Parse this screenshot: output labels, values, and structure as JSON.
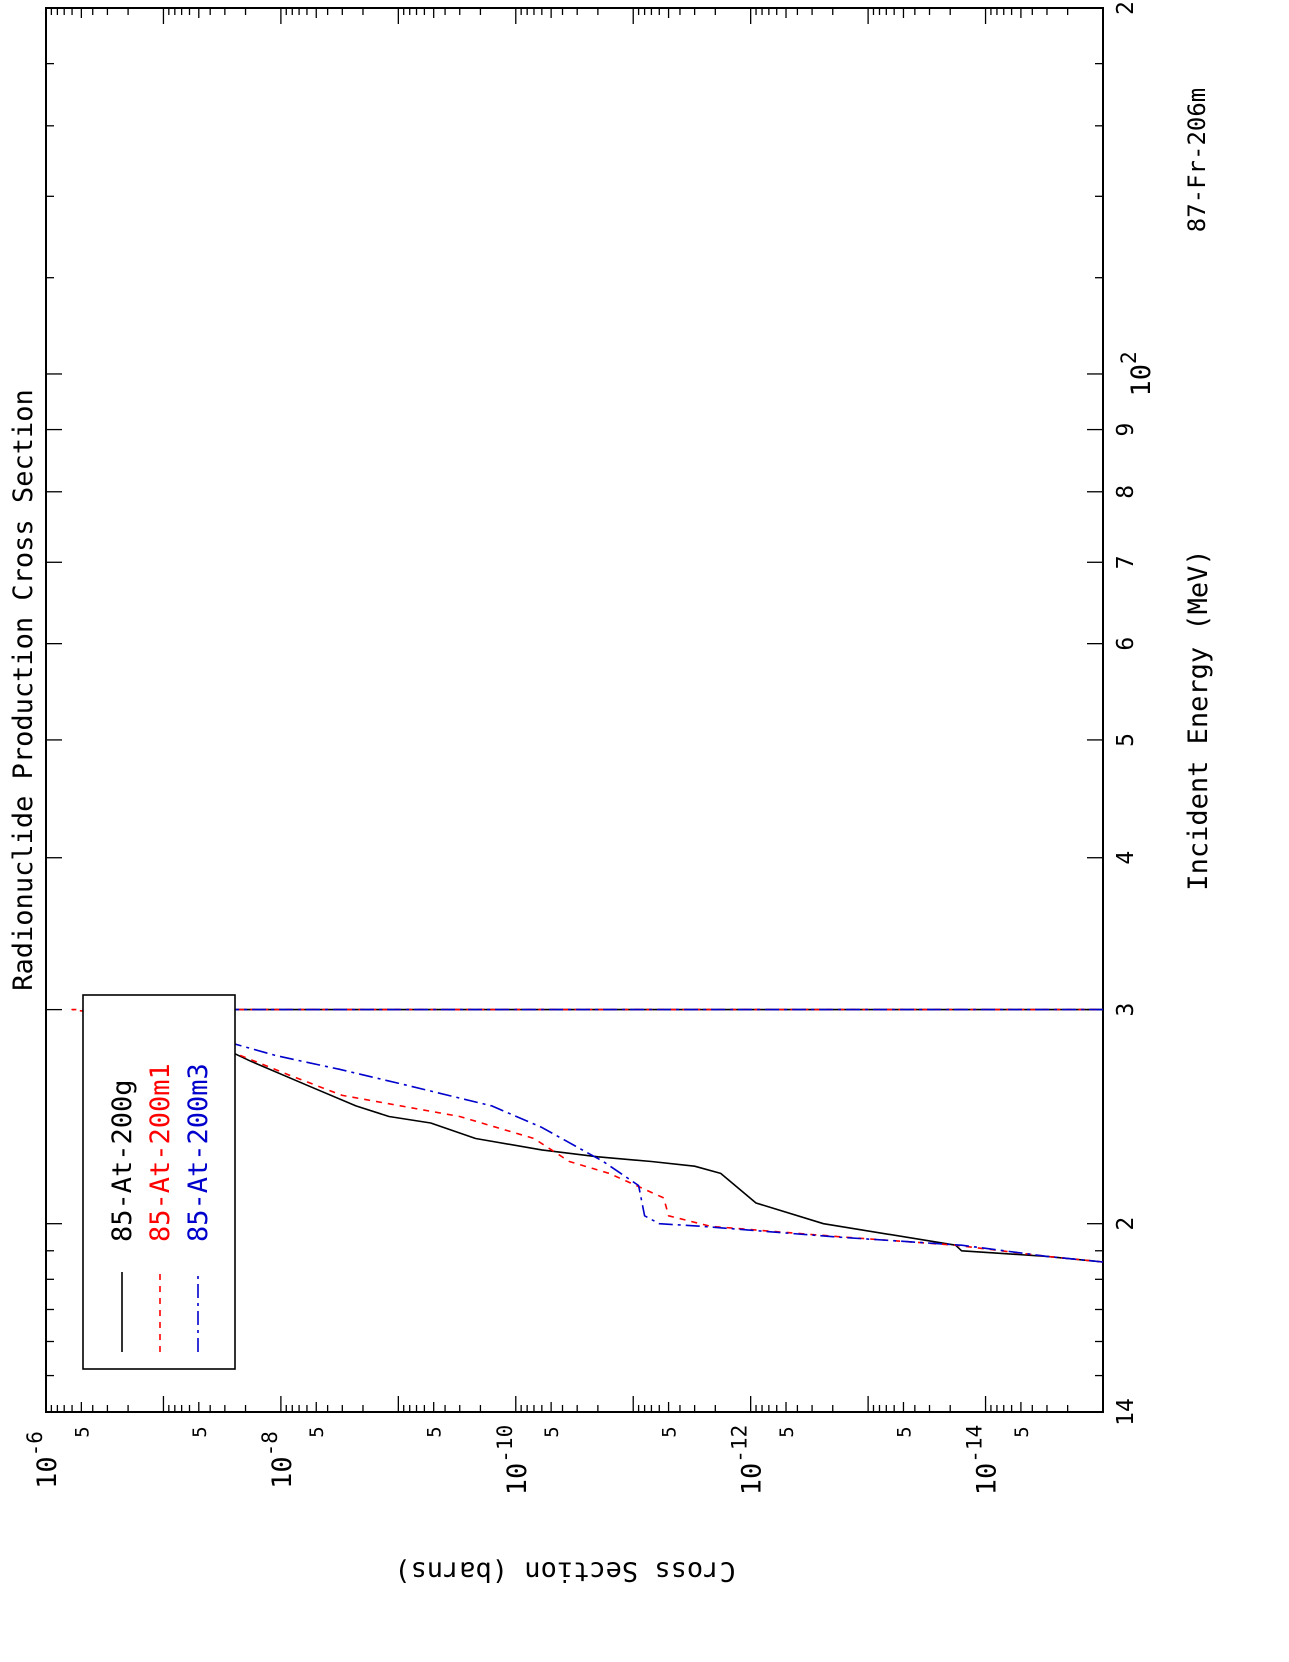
{
  "chart_data": {
    "type": "line",
    "title": "Radionuclide Production Cross Section",
    "xlabel": "Incident Energy (MeV)",
    "ylabel": "Cross Section (barns)",
    "corner_label": "87-Fr-206m",
    "xscale": "log",
    "yscale": "log",
    "xlim": [
      14,
      200
    ],
    "ylim": [
      1e-15,
      1e-06
    ],
    "x_major_ticks": [
      {
        "value": 14,
        "label": "14"
      },
      {
        "value": 20,
        "label": "2"
      },
      {
        "value": 30,
        "label": "3"
      },
      {
        "value": 40,
        "label": "4"
      },
      {
        "value": 50,
        "label": "5"
      },
      {
        "value": 60,
        "label": "6"
      },
      {
        "value": 70,
        "label": "7"
      },
      {
        "value": 80,
        "label": "8"
      },
      {
        "value": 90,
        "label": "9"
      },
      {
        "value": 100,
        "label_base": "10",
        "label_exp": "2"
      },
      {
        "value": 200,
        "label": "2"
      }
    ],
    "y_major_ticks": [
      {
        "value": 1e-06,
        "base": "10",
        "exp": "-6"
      },
      {
        "value": 1e-08,
        "base": "10",
        "exp": "-8"
      },
      {
        "value": 1e-10,
        "base": "10",
        "exp": "-10"
      },
      {
        "value": 1e-12,
        "base": "10",
        "exp": "-12"
      },
      {
        "value": 1e-14,
        "base": "10",
        "exp": "-14"
      }
    ],
    "y_minor_labels": [
      {
        "value": 5e-07,
        "label": "5"
      },
      {
        "value": 5e-08,
        "label": "5"
      },
      {
        "value": 5e-09,
        "label": "5"
      },
      {
        "value": 5e-10,
        "label": "5"
      },
      {
        "value": 5e-11,
        "label": "5"
      },
      {
        "value": 5e-12,
        "label": "5"
      },
      {
        "value": 5e-13,
        "label": "5"
      },
      {
        "value": 5e-14,
        "label": "5"
      },
      {
        "value": 5e-15,
        "label": "5"
      }
    ],
    "legend": {
      "position": "bottom-left"
    },
    "grid": false,
    "series": [
      {
        "name": "85-At-200g",
        "color": "#000000",
        "dash": "solid",
        "points": [
          [
            18.6,
            1e-15
          ],
          [
            18.8,
            3e-15
          ],
          [
            19.0,
            1.6e-14
          ],
          [
            19.2,
            1.8e-14
          ],
          [
            20.0,
            2.4e-13
          ],
          [
            20.8,
            9e-13
          ],
          [
            22.0,
            1.8e-12
          ],
          [
            22.3,
            3e-12
          ],
          [
            22.5,
            7e-12
          ],
          [
            22.7,
            2e-11
          ],
          [
            23.0,
            6e-11
          ],
          [
            23.5,
            2.2e-10
          ],
          [
            24.2,
            5.3e-10
          ],
          [
            24.5,
            1.2e-09
          ],
          [
            25.0,
            2.3e-09
          ],
          [
            26.0,
            6e-09
          ],
          [
            27.2,
            1.8e-08
          ],
          [
            28.5,
            5e-08
          ],
          [
            29.5,
            1.3e-07
          ],
          [
            30.0,
            3.2e-07
          ]
        ]
      },
      {
        "name": "85-At-200m1",
        "color": "#ff0000",
        "dash": "6,6",
        "points": [
          [
            18.6,
            1e-15
          ],
          [
            18.8,
            3e-15
          ],
          [
            19.2,
            1.8e-14
          ],
          [
            19.5,
            1.6e-13
          ],
          [
            19.7,
            6e-13
          ],
          [
            19.9,
            2.2e-12
          ],
          [
            20.3,
            5e-12
          ],
          [
            21.0,
            5.5e-12
          ],
          [
            22.0,
            1.6e-11
          ],
          [
            22.5,
            3.5e-11
          ],
          [
            23.5,
            7e-11
          ],
          [
            24.5,
            3e-10
          ],
          [
            25.5,
            3e-09
          ],
          [
            26.5,
            8.5e-09
          ],
          [
            28.0,
            3.5e-08
          ],
          [
            29.3,
            1e-07
          ],
          [
            30.0,
            6e-07
          ]
        ]
      },
      {
        "name": "85-At-200m3",
        "color": "#0000cc",
        "dash": "14,5,3,5",
        "points": [
          [
            18.6,
            1e-15
          ],
          [
            18.8,
            3e-15
          ],
          [
            19.2,
            1.6e-14
          ],
          [
            19.5,
            1.8e-13
          ],
          [
            19.7,
            7e-13
          ],
          [
            19.9,
            2.6e-12
          ],
          [
            20.0,
            6e-12
          ],
          [
            20.3,
            8e-12
          ],
          [
            21.5,
            9e-12
          ],
          [
            22.5,
            1.8e-11
          ],
          [
            24.0,
            6e-11
          ],
          [
            25.0,
            1.6e-10
          ],
          [
            26.0,
            8.5e-10
          ],
          [
            26.8,
            3.2e-09
          ],
          [
            27.5,
            1.1e-08
          ],
          [
            28.4,
            3.6e-08
          ],
          [
            30.0,
            2e-07
          ]
        ]
      }
    ],
    "threshold_energy": 30.0
  }
}
